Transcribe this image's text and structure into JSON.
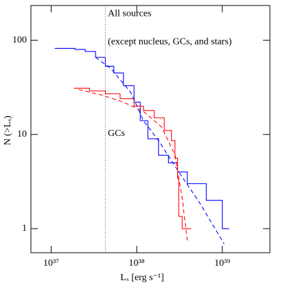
{
  "chart_data": {
    "type": "line",
    "xlabel": "Lₓ [erg s⁻¹]",
    "ylabel": "N (>Lₓ)",
    "xscale": "log",
    "yscale": "log",
    "xlim": [
      5.8e+36,
      3.6e+39
    ],
    "ylim": [
      0.555,
      234
    ],
    "xticks": [
      {
        "value": 1e+37,
        "label": "10³⁷"
      },
      {
        "value": 1e+38,
        "label": "10³⁸"
      },
      {
        "value": 1e+39,
        "label": "10³⁹"
      }
    ],
    "yticks": [
      1,
      10,
      100
    ],
    "vline": 4.3e+37,
    "annotations": [
      {
        "text": "All sources",
        "x": 4.6e+37,
        "y": 190
      },
      {
        "text": "(except nucleus, GCs, and stars)",
        "x": 4.6e+37,
        "y": 96
      },
      {
        "text": "GCs",
        "x": 4.6e+37,
        "y": 10.2
      }
    ],
    "series": [
      {
        "color": "#0000ff",
        "linestyle": "solid",
        "drawstyle": "steps",
        "x": [
          1.1e+37,
          1.9e+37,
          2.5e+37,
          3.3e+37,
          4.3e+37,
          5.4e+37,
          7e+37,
          9.3e+37,
          1.1e+38,
          1.35e+38,
          1.8e+38,
          2.35e+38,
          3e+38,
          3.9e+38,
          6.5e+38,
          1e+39,
          1.2e+39
        ],
        "values": [
          82,
          80,
          76,
          66,
          53,
          45,
          33,
          22,
          14,
          9,
          6,
          5,
          4,
          3,
          2,
          1,
          1
        ]
      },
      {
        "color": "#ff0000",
        "linestyle": "solid",
        "drawstyle": "steps",
        "x": [
          1.85e+37,
          2.8e+37,
          4.3e+37,
          6.4e+37,
          9.3e+37,
          1.2e+38,
          1.6e+38,
          2.1e+38,
          2.55e+38,
          2.8e+38,
          3e+38,
          3.1e+38,
          3.4e+38,
          4.3e+38
        ],
        "values": [
          31,
          29,
          27,
          24,
          20,
          18,
          15,
          11,
          8.6,
          5.6,
          3.4,
          1.35,
          1,
          1
        ]
      },
      {
        "color": "#0000ff",
        "linestyle": "dashed",
        "drawstyle": "line",
        "x": [
          3.3e+37,
          5e+37,
          8.5e+37,
          1.2e+38,
          1.8e+38,
          3.1e+38,
          5.4e+38,
          1.05e+39
        ],
        "values": [
          66,
          50,
          28,
          14,
          8.6,
          4.0,
          1.9,
          0.69
        ]
      },
      {
        "color": "#ff0000",
        "linestyle": "dashed",
        "drawstyle": "line",
        "x": [
          2.1e+37,
          4e+37,
          7e+37,
          1.2e+38,
          1.95e+38,
          2.8e+38,
          3.4e+38,
          3.9e+38
        ],
        "values": [
          30,
          26,
          22,
          17.5,
          12,
          6.1,
          2.1,
          0.75
        ]
      }
    ]
  }
}
